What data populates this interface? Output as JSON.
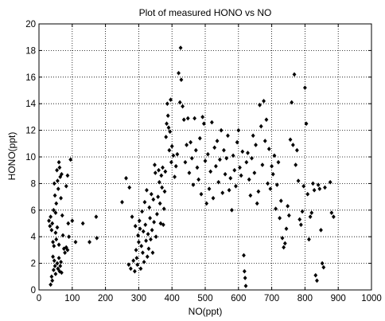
{
  "chart_data": {
    "type": "scatter",
    "title": "Plot of measured HONO vs NO",
    "xlabel": "NO(ppt)",
    "ylabel": "HONO(ppt)",
    "xlim": [
      0,
      1000
    ],
    "ylim": [
      0,
      20
    ],
    "xticks": [
      "0",
      "100",
      "200",
      "300",
      "400",
      "500",
      "600",
      "700",
      "800",
      "900",
      "1000"
    ],
    "yticks": [
      "0",
      "2",
      "4",
      "6",
      "8",
      "10",
      "12",
      "14",
      "16",
      "18",
      "20"
    ],
    "grid": true,
    "marker": "diamond",
    "marker_color": "#000000",
    "series": [
      {
        "points": [
          [
            30,
            5.2
          ],
          [
            33,
            4.8
          ],
          [
            35,
            5.5
          ],
          [
            38,
            4.5
          ],
          [
            40,
            5.0
          ],
          [
            42,
            3.6
          ],
          [
            44,
            6.0
          ],
          [
            46,
            8.0
          ],
          [
            48,
            7.1
          ],
          [
            50,
            5.8
          ],
          [
            52,
            6.5
          ],
          [
            54,
            9.0
          ],
          [
            56,
            8.2
          ],
          [
            58,
            7.6
          ],
          [
            60,
            9.6
          ],
          [
            62,
            9.2
          ],
          [
            64,
            8.5
          ],
          [
            66,
            6.9
          ],
          [
            68,
            8.7
          ],
          [
            70,
            5.6
          ],
          [
            72,
            4.1
          ],
          [
            75,
            3.1
          ],
          [
            78,
            2.8
          ],
          [
            82,
            3.2
          ],
          [
            86,
            3.0
          ],
          [
            88,
            5.0
          ],
          [
            90,
            4.0
          ],
          [
            95,
            9.8
          ],
          [
            100,
            5.2
          ],
          [
            110,
            3.6
          ],
          [
            35,
            0.4
          ],
          [
            38,
            1.0
          ],
          [
            40,
            0.7
          ],
          [
            42,
            2.5
          ],
          [
            44,
            1.5
          ],
          [
            46,
            2.2
          ],
          [
            48,
            1.8
          ],
          [
            50,
            1.2
          ],
          [
            52,
            3.8
          ],
          [
            55,
            2.0
          ],
          [
            57,
            1.6
          ],
          [
            60,
            2.4
          ],
          [
            62,
            1.4
          ],
          [
            64,
            1.8
          ],
          [
            66,
            2.1
          ],
          [
            68,
            1.3
          ],
          [
            45,
            3.3
          ],
          [
            50,
            4.3
          ],
          [
            55,
            4.7
          ],
          [
            60,
            3.4
          ],
          [
            132,
            5.0
          ],
          [
            152,
            3.6
          ],
          [
            172,
            5.5
          ],
          [
            174,
            3.9
          ],
          [
            82,
            7.8
          ],
          [
            86,
            8.6
          ],
          [
            250,
            6.6
          ],
          [
            262,
            8.4
          ],
          [
            272,
            7.7
          ],
          [
            270,
            1.9
          ],
          [
            276,
            1.6
          ],
          [
            280,
            5.5
          ],
          [
            284,
            2.2
          ],
          [
            288,
            1.4
          ],
          [
            290,
            4.8
          ],
          [
            292,
            3.0
          ],
          [
            294,
            2.4
          ],
          [
            296,
            1.9
          ],
          [
            298,
            4.1
          ],
          [
            300,
            3.6
          ],
          [
            302,
            5.2
          ],
          [
            304,
            4.6
          ],
          [
            306,
            1.6
          ],
          [
            308,
            3.3
          ],
          [
            310,
            5.9
          ],
          [
            312,
            2.8
          ],
          [
            314,
            4.4
          ],
          [
            316,
            2.1
          ],
          [
            318,
            6.6
          ],
          [
            320,
            4.9
          ],
          [
            322,
            3.7
          ],
          [
            324,
            7.5
          ],
          [
            326,
            2.5
          ],
          [
            328,
            4.2
          ],
          [
            330,
            3.1
          ],
          [
            332,
            6.2
          ],
          [
            334,
            5.4
          ],
          [
            336,
            3.8
          ],
          [
            338,
            7.2
          ],
          [
            340,
            4.5
          ],
          [
            342,
            2.8
          ],
          [
            344,
            6.8
          ],
          [
            346,
            5.1
          ],
          [
            348,
            9.4
          ],
          [
            350,
            8.8
          ],
          [
            352,
            4.0
          ],
          [
            355,
            5.7
          ],
          [
            358,
            7.0
          ],
          [
            360,
            9.0
          ],
          [
            362,
            8.1
          ],
          [
            364,
            6.5
          ],
          [
            366,
            5.0
          ],
          [
            368,
            8.6
          ],
          [
            370,
            7.7
          ],
          [
            372,
            9.2
          ],
          [
            374,
            4.9
          ],
          [
            376,
            6.1
          ],
          [
            378,
            7.4
          ],
          [
            380,
            8.9
          ],
          [
            382,
            11.5
          ],
          [
            384,
            12.5
          ],
          [
            386,
            14.0
          ],
          [
            388,
            13.1
          ],
          [
            390,
            12.2
          ],
          [
            392,
            10.5
          ],
          [
            394,
            11.9
          ],
          [
            396,
            14.3
          ],
          [
            398,
            9.6
          ],
          [
            400,
            10.8
          ],
          [
            404,
            10.1
          ],
          [
            408,
            8.5
          ],
          [
            412,
            9.3
          ],
          [
            416,
            10.2
          ],
          [
            420,
            16.3
          ],
          [
            424,
            14.1
          ],
          [
            426,
            18.2
          ],
          [
            428,
            15.8
          ],
          [
            432,
            13.8
          ],
          [
            436,
            12.8
          ],
          [
            440,
            9.6
          ],
          [
            444,
            10.9
          ],
          [
            448,
            12.9
          ],
          [
            452,
            8.8
          ],
          [
            456,
            11.1
          ],
          [
            460,
            9.9
          ],
          [
            464,
            7.9
          ],
          [
            468,
            12.9
          ],
          [
            472,
            10.5
          ],
          [
            476,
            9.2
          ],
          [
            480,
            8.3
          ],
          [
            484,
            11.4
          ],
          [
            488,
            7.2
          ],
          [
            492,
            13.0
          ],
          [
            496,
            12.5
          ],
          [
            500,
            9.7
          ],
          [
            504,
            6.5
          ],
          [
            508,
            10.2
          ],
          [
            512,
            7.6
          ],
          [
            516,
            8.9
          ],
          [
            520,
            12.6
          ],
          [
            524,
            6.9
          ],
          [
            528,
            10.7
          ],
          [
            532,
            9.3
          ],
          [
            536,
            11.2
          ],
          [
            540,
            8.1
          ],
          [
            544,
            9.8
          ],
          [
            548,
            12.0
          ],
          [
            552,
            7.3
          ],
          [
            556,
            10.5
          ],
          [
            560,
            8.7
          ],
          [
            564,
            9.9
          ],
          [
            568,
            11.6
          ],
          [
            572,
            7.5
          ],
          [
            576,
            8.4
          ],
          [
            580,
            6.0
          ],
          [
            584,
            10.1
          ],
          [
            588,
            9.0
          ],
          [
            592,
            7.8
          ],
          [
            596,
            11.1
          ],
          [
            600,
            12.0
          ],
          [
            604,
            9.2
          ],
          [
            608,
            8.6
          ],
          [
            612,
            10.4
          ],
          [
            616,
            2.6
          ],
          [
            618,
            1.4
          ],
          [
            620,
            0.9
          ],
          [
            622,
            0.3
          ],
          [
            624,
            9.6
          ],
          [
            628,
            10.3
          ],
          [
            632,
            8.3
          ],
          [
            636,
            7.1
          ],
          [
            640,
            9.9
          ],
          [
            644,
            11.6
          ],
          [
            648,
            8.8
          ],
          [
            652,
            10.9
          ],
          [
            656,
            6.5
          ],
          [
            660,
            7.4
          ],
          [
            664,
            13.9
          ],
          [
            668,
            12.3
          ],
          [
            672,
            9.4
          ],
          [
            676,
            14.2
          ],
          [
            680,
            11.2
          ],
          [
            684,
            12.8
          ],
          [
            688,
            8.0
          ],
          [
            692,
            10.6
          ],
          [
            696,
            7.6
          ],
          [
            700,
            9.3
          ],
          [
            704,
            8.7
          ],
          [
            708,
            10.1
          ],
          [
            712,
            6.1
          ],
          [
            716,
            7.9
          ],
          [
            720,
            9.6
          ],
          [
            724,
            5.4
          ],
          [
            728,
            6.7
          ],
          [
            732,
            3.9
          ],
          [
            736,
            3.2
          ],
          [
            740,
            3.5
          ],
          [
            744,
            4.6
          ],
          [
            748,
            6.3
          ],
          [
            752,
            5.6
          ],
          [
            756,
            11.3
          ],
          [
            760,
            14.1
          ],
          [
            764,
            10.9
          ],
          [
            768,
            16.2
          ],
          [
            772,
            9.4
          ],
          [
            776,
            10.5
          ],
          [
            780,
            8.2
          ],
          [
            784,
            5.3
          ],
          [
            788,
            4.9
          ],
          [
            792,
            5.9
          ],
          [
            796,
            7.8
          ],
          [
            800,
            15.2
          ],
          [
            804,
            12.5
          ],
          [
            808,
            7.2
          ],
          [
            812,
            3.8
          ],
          [
            816,
            5.5
          ],
          [
            820,
            5.8
          ],
          [
            824,
            8.0
          ],
          [
            828,
            7.5
          ],
          [
            832,
            1.1
          ],
          [
            836,
            0.7
          ],
          [
            840,
            7.9
          ],
          [
            844,
            7.6
          ],
          [
            848,
            4.5
          ],
          [
            852,
            2.0
          ],
          [
            856,
            1.7
          ],
          [
            860,
            7.7
          ],
          [
            876,
            8.1
          ],
          [
            880,
            5.8
          ],
          [
            886,
            5.5
          ]
        ]
      }
    ]
  }
}
